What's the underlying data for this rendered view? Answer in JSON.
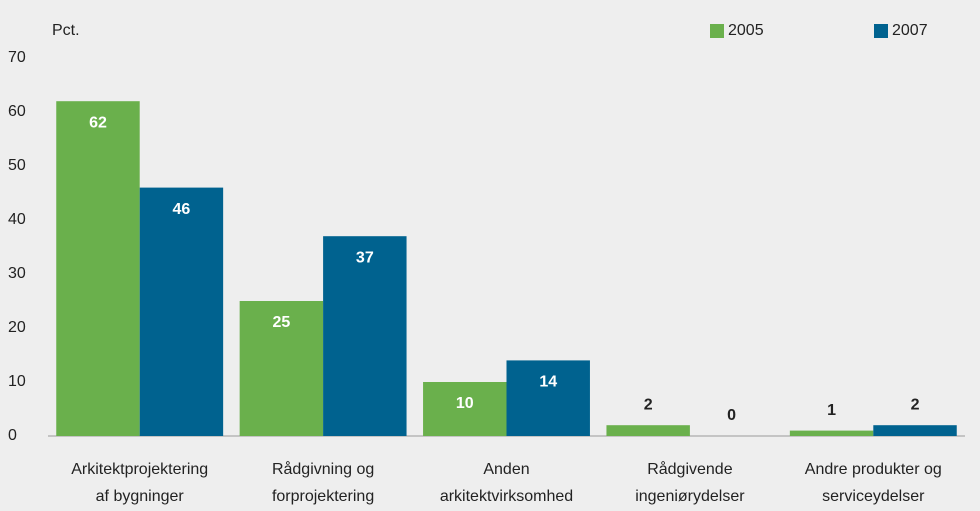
{
  "chart_data": {
    "type": "bar",
    "y_axis_label": "Pct.",
    "categories": [
      [
        "Arkitektprojektering",
        "af bygninger"
      ],
      [
        "Rådgivning og",
        "forprojektering"
      ],
      [
        "Anden",
        "arkitektvirksomhed"
      ],
      [
        "Rådgivende",
        "ingeniørydelser"
      ],
      [
        "Andre produkter og",
        "serviceydelser"
      ]
    ],
    "series": [
      {
        "name": "2005",
        "color": "#6ab04c",
        "values": [
          62,
          25,
          10,
          2,
          1
        ]
      },
      {
        "name": "2007",
        "color": "#00628f",
        "values": [
          46,
          37,
          14,
          0,
          2
        ]
      }
    ],
    "ylim": [
      0,
      70
    ],
    "yticks": [
      0,
      10,
      20,
      30,
      40,
      50,
      60,
      70
    ],
    "grid": false,
    "legend": "top-right"
  }
}
